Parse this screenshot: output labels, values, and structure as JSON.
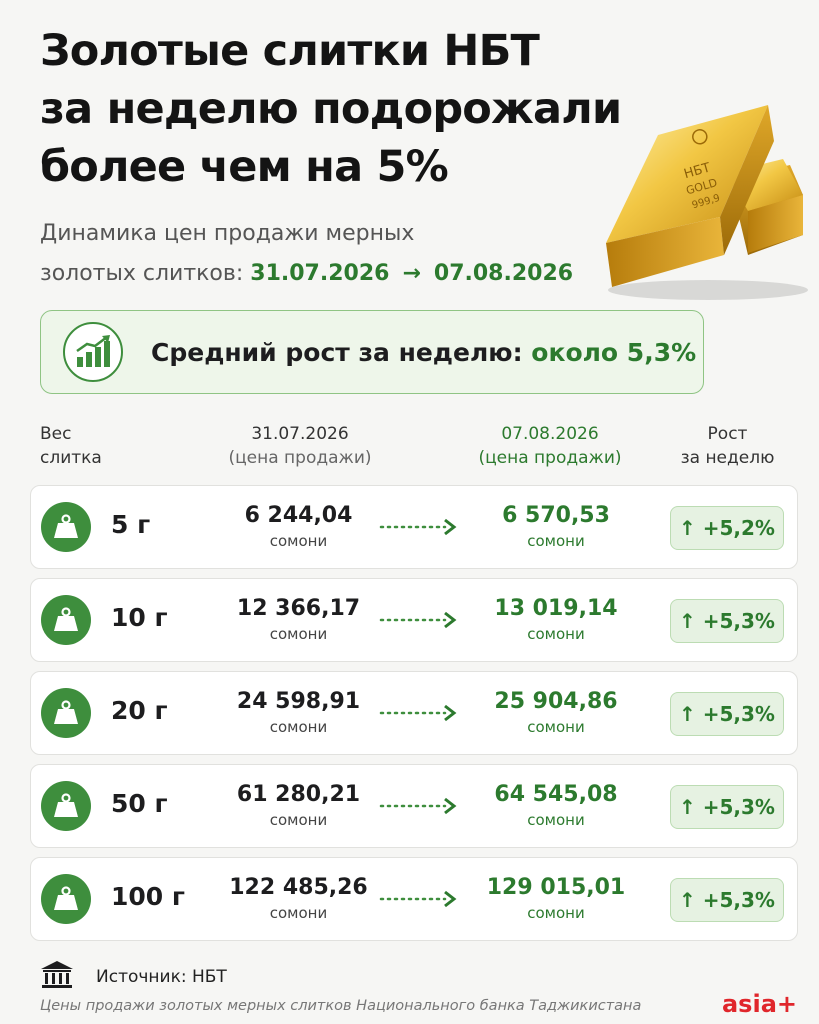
{
  "title_lines": [
    "Золотые слитки НБТ",
    "за неделю подорожали",
    "более чем на 5%"
  ],
  "subtitle": {
    "line1": "Динамика цен продажи мерных",
    "line2_prefix": "золотых слитков:",
    "date_from": "31.07.2026",
    "arrow": "→",
    "date_to": "07.08.2026"
  },
  "gold_bar": {
    "line1": "НБТ",
    "line2": "GOLD",
    "line3": "999,9"
  },
  "banner": {
    "label": "Средний рост за неделю:",
    "value": "около 5,3%",
    "icon": "growth-chart-icon"
  },
  "table_header": {
    "weight": [
      "Вес",
      "слитка"
    ],
    "old": [
      "31.07.2026",
      "(цена продажи)"
    ],
    "new": [
      "07.08.2026",
      "(цена продажи)"
    ],
    "growth": [
      "Рост",
      "за неделю"
    ]
  },
  "rows": [
    {
      "weight": "5 г",
      "old": "6 244,04",
      "new": "6 570,53",
      "currency": "сомони",
      "growth": "↑ +5,2%"
    },
    {
      "weight": "10 г",
      "old": "12 366,17",
      "new": "13 019,14",
      "currency": "сомони",
      "growth": "↑ +5,3%"
    },
    {
      "weight": "20 г",
      "old": "24 598,91",
      "new": "25 904,86",
      "currency": "сомони",
      "growth": "↑ +5,3%"
    },
    {
      "weight": "50 г",
      "old": "61 280,21",
      "new": "64 545,08",
      "currency": "сомони",
      "growth": "↑ +5,3%"
    },
    {
      "weight": "100 г",
      "old": "122 485,26",
      "new": "129 015,01",
      "currency": "сомони",
      "growth": "↑ +5,3%"
    }
  ],
  "source": {
    "label": "Источник: НБТ",
    "icon": "bank-building-icon"
  },
  "note": "Цены продажи золотых мерных слитков Национального банка Таджикистана",
  "brand": "asia+",
  "colors": {
    "accent_green": "#2c7a2e",
    "icon_green": "#3e8e3d",
    "brand_red": "#e0262b",
    "gold": "#d9a62a"
  }
}
